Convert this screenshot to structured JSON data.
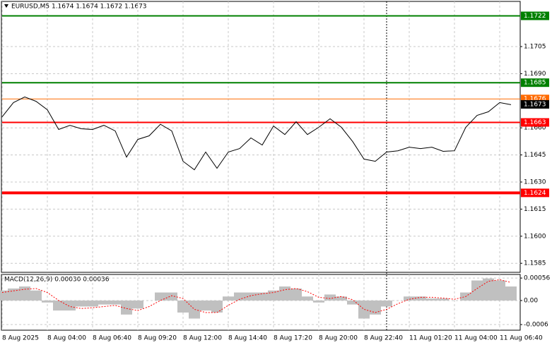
{
  "chart_data": [
    {
      "type": "line",
      "title": "EURUSD,M5 1.1674 1.1674 1.1672 1.1673",
      "color": "#000000",
      "values": [
        1.16661,
        1.1674,
        1.16771,
        1.16747,
        1.167,
        1.16591,
        1.16614,
        1.16595,
        1.16591,
        1.16614,
        1.16583,
        1.16438,
        1.16536,
        1.16556,
        1.1662,
        1.16583,
        1.16415,
        1.16368,
        1.16466,
        1.16376,
        1.16466,
        1.16485,
        1.16544,
        1.16505,
        1.1661,
        1.16563,
        1.16634,
        1.16563,
        1.16603,
        1.1665,
        1.16603,
        1.16524,
        1.16427,
        1.16415,
        1.16466,
        1.16473,
        1.16493,
        1.16485,
        1.16493,
        1.1647,
        1.16473,
        1.16603,
        1.16669,
        1.16689,
        1.1674,
        1.16728
      ],
      "ylim": [
        1.158,
        1.173
      ],
      "yticks": [
        {
          "value": 1.1705,
          "label": "1.1705"
        },
        {
          "value": 1.169,
          "label": "1.1690"
        },
        {
          "value": 1.166,
          "label": "1.1660"
        },
        1.1645,
        {
          "value": 1.163,
          "label": "1.1630"
        },
        1.1615,
        {
          "value": 1.16,
          "label": "1.1600"
        },
        1.1585
      ],
      "levels": [
        {
          "value": 1.1722,
          "color": "#008000"
        },
        {
          "value": 1.1685,
          "color": "#008000"
        },
        {
          "value": 1.1676,
          "color": "#ff6a00"
        },
        {
          "value": 1.1663,
          "color": "#ff0000"
        },
        {
          "value": 1.1624,
          "color": "#ff0000"
        }
      ],
      "last": 1.1673,
      "grid": true
    },
    {
      "type": "macd",
      "title": "MACD(12,26,9) 0.00030 0.00036",
      "categories": [
        "8 Aug 2025",
        null,
        null,
        null,
        "8 Aug 04:00",
        null,
        null,
        null,
        "8 Aug 06:40",
        null,
        null,
        null,
        "8 Aug 09:20",
        null,
        null,
        null,
        "8 Aug 12:00",
        null,
        null,
        null,
        "8 Aug 14:40",
        null,
        null,
        null,
        "8 Aug 17:20",
        null,
        null,
        null,
        "8 Aug 20:00",
        null,
        null,
        null,
        "8 Aug 22:40",
        null,
        null,
        null,
        "11 Aug 01:20",
        null,
        null,
        null,
        "11 Aug 04:00",
        null,
        null,
        null,
        "11 Aug 06:40",
        null
      ],
      "series": [
        {
          "color": "#c0c0c0",
          "values": [
            0.00025,
            0.0003,
            0.00035,
            0.00025,
            -5e-05,
            -0.00025,
            -0.00025,
            -0.00015,
            -0.00015,
            -0.0001,
            -0.0001,
            -0.00035,
            -0.0002,
            0,
            0.0002,
            0.0002,
            -0.0003,
            -0.00045,
            -0.00025,
            -0.0003,
            0.0001,
            0.0002,
            0.0002,
            0.0002,
            0.00025,
            0.00035,
            0.0003,
            0.0001,
            -5e-05,
            0.00015,
            0.0001,
            -0.0001,
            -0.00045,
            -0.00035,
            -0.00015,
            0,
            0.0001,
            0.0001,
            5e-05,
            5e-05,
            0,
            0.0002,
            0.0005,
            0.00055,
            0.0005,
            0.00035
          ]
        },
        {
          "color": "#ff0000",
          "values": [
            0.0002,
            0.00024,
            0.00028,
            0.0003,
            0.0002,
            0,
            -0.00015,
            -0.0002,
            -0.00018,
            -0.00015,
            -0.00012,
            -0.0002,
            -0.00025,
            -0.00015,
            0,
            0.00012,
            5e-05,
            -0.00022,
            -0.0003,
            -0.0003,
            -0.00012,
            3e-05,
            0.00012,
            0.00017,
            0.0002,
            0.00027,
            0.0003,
            0.00022,
            8e-05,
            5e-05,
            0.0001,
            2e-05,
            -0.00022,
            -0.0003,
            -0.00022,
            -8e-05,
            3e-05,
            8e-05,
            8e-05,
            6e-05,
            3e-05,
            0.0001,
            0.0003,
            0.00048,
            0.00052,
            0.00045
          ]
        }
      ],
      "ylim": [
        -0.00074,
        0.00065
      ],
      "yticks": [
        0.00056,
        {
          "value": 0,
          "label": "0.00"
        },
        -0.0006
      ],
      "grid": true
    }
  ]
}
